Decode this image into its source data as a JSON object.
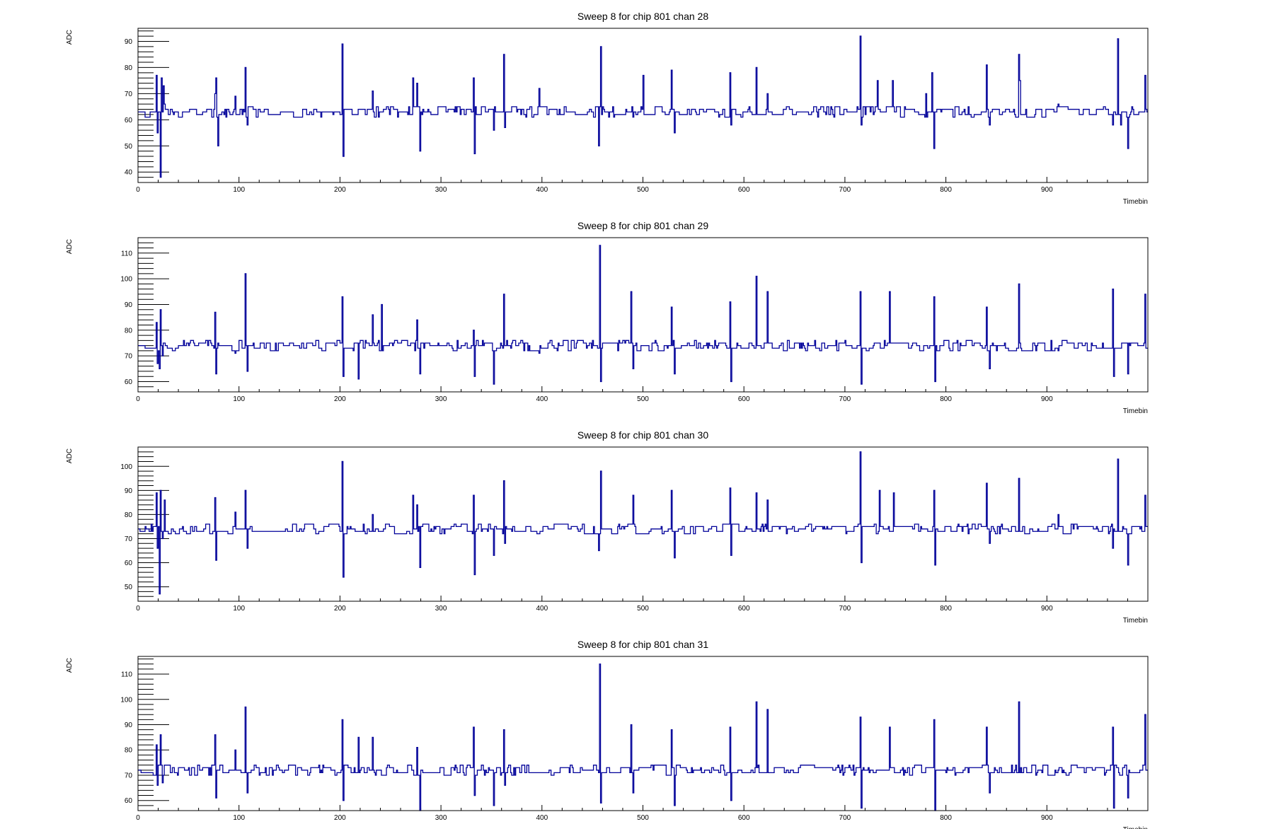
{
  "colors": {
    "trace": "#000099",
    "axis": "#000000",
    "background": "#ffffff"
  },
  "chart_data": [
    {
      "type": "line",
      "title": "Sweep 8 for chip 801 chan 28",
      "xlabel": "Timebin",
      "ylabel": "ADC",
      "xlim": [
        0,
        1000
      ],
      "ylim": [
        36,
        95
      ],
      "xticks": [
        0,
        100,
        200,
        300,
        400,
        500,
        600,
        700,
        800,
        900
      ],
      "yticks": [
        40,
        50,
        60,
        70,
        80,
        90
      ],
      "baseline": 63,
      "noise": 2,
      "spikes": [
        [
          18,
          77
        ],
        [
          19,
          55
        ],
        [
          22,
          38
        ],
        [
          23,
          76
        ],
        [
          25,
          73
        ],
        [
          26,
          66
        ],
        [
          76,
          70
        ],
        [
          77,
          76
        ],
        [
          79,
          50
        ],
        [
          96,
          69
        ],
        [
          106,
          80
        ],
        [
          108,
          58
        ],
        [
          202,
          89
        ],
        [
          203,
          46
        ],
        [
          232,
          71
        ],
        [
          272,
          76
        ],
        [
          276,
          74
        ],
        [
          279,
          48
        ],
        [
          332,
          76
        ],
        [
          333,
          47
        ],
        [
          352,
          56
        ],
        [
          362,
          85
        ],
        [
          363,
          57
        ],
        [
          397,
          72
        ],
        [
          456,
          50
        ],
        [
          458,
          88
        ],
        [
          500,
          77
        ],
        [
          528,
          79
        ],
        [
          531,
          55
        ],
        [
          586,
          78
        ],
        [
          587,
          58
        ],
        [
          612,
          80
        ],
        [
          623,
          70
        ],
        [
          715,
          92
        ],
        [
          716,
          58
        ],
        [
          732,
          75
        ],
        [
          747,
          75
        ],
        [
          780,
          70
        ],
        [
          786,
          78
        ],
        [
          788,
          49
        ],
        [
          840,
          81
        ],
        [
          843,
          58
        ],
        [
          872,
          85
        ],
        [
          873,
          75
        ],
        [
          911,
          66
        ],
        [
          965,
          58
        ],
        [
          970,
          91
        ],
        [
          973,
          58
        ],
        [
          980,
          49
        ],
        [
          997,
          77
        ]
      ]
    },
    {
      "type": "line",
      "title": "Sweep 8 for chip 801 chan 29",
      "xlabel": "Timebin",
      "ylabel": "ADC",
      "xlim": [
        0,
        1000
      ],
      "ylim": [
        56,
        116
      ],
      "xticks": [
        0,
        100,
        200,
        300,
        400,
        500,
        600,
        700,
        800,
        900
      ],
      "yticks": [
        60,
        70,
        80,
        90,
        100,
        110
      ],
      "baseline": 74,
      "noise": 2,
      "spikes": [
        [
          18,
          83
        ],
        [
          19,
          67
        ],
        [
          21,
          65
        ],
        [
          22,
          88
        ],
        [
          24,
          70
        ],
        [
          76,
          87
        ],
        [
          77,
          63
        ],
        [
          96,
          71
        ],
        [
          106,
          102
        ],
        [
          108,
          64
        ],
        [
          202,
          93
        ],
        [
          203,
          62
        ],
        [
          218,
          61
        ],
        [
          232,
          86
        ],
        [
          241,
          90
        ],
        [
          276,
          84
        ],
        [
          279,
          63
        ],
        [
          332,
          80
        ],
        [
          333,
          62
        ],
        [
          352,
          59
        ],
        [
          362,
          94
        ],
        [
          365,
          76
        ],
        [
          397,
          71
        ],
        [
          457,
          113
        ],
        [
          458,
          60
        ],
        [
          488,
          95
        ],
        [
          490,
          65
        ],
        [
          528,
          89
        ],
        [
          531,
          63
        ],
        [
          586,
          91
        ],
        [
          587,
          60
        ],
        [
          612,
          101
        ],
        [
          623,
          95
        ],
        [
          715,
          95
        ],
        [
          716,
          59
        ],
        [
          744,
          95
        ],
        [
          788,
          93
        ],
        [
          789,
          60
        ],
        [
          840,
          89
        ],
        [
          843,
          65
        ],
        [
          872,
          98
        ],
        [
          911,
          72
        ],
        [
          965,
          96
        ],
        [
          966,
          62
        ],
        [
          980,
          63
        ],
        [
          997,
          94
        ]
      ]
    },
    {
      "type": "line",
      "title": "Sweep 8 for chip 801 chan 30",
      "xlabel": "Timebin",
      "ylabel": "ADC",
      "xlim": [
        0,
        1000
      ],
      "ylim": [
        44,
        108
      ],
      "xticks": [
        0,
        100,
        200,
        300,
        400,
        500,
        600,
        700,
        800,
        900
      ],
      "yticks": [
        50,
        60,
        70,
        80,
        90,
        100
      ],
      "baseline": 74,
      "noise": 2,
      "spikes": [
        [
          18,
          89
        ],
        [
          19,
          66
        ],
        [
          21,
          47
        ],
        [
          22,
          90
        ],
        [
          24,
          70
        ],
        [
          26,
          86
        ],
        [
          76,
          87
        ],
        [
          77,
          61
        ],
        [
          96,
          81
        ],
        [
          106,
          90
        ],
        [
          108,
          66
        ],
        [
          202,
          102
        ],
        [
          203,
          54
        ],
        [
          232,
          80
        ],
        [
          272,
          88
        ],
        [
          276,
          84
        ],
        [
          279,
          58
        ],
        [
          332,
          88
        ],
        [
          333,
          55
        ],
        [
          352,
          63
        ],
        [
          362,
          94
        ],
        [
          363,
          68
        ],
        [
          456,
          65
        ],
        [
          458,
          98
        ],
        [
          490,
          88
        ],
        [
          528,
          90
        ],
        [
          531,
          62
        ],
        [
          586,
          91
        ],
        [
          587,
          63
        ],
        [
          612,
          89
        ],
        [
          623,
          86
        ],
        [
          715,
          106
        ],
        [
          716,
          60
        ],
        [
          734,
          90
        ],
        [
          748,
          89
        ],
        [
          788,
          90
        ],
        [
          789,
          59
        ],
        [
          840,
          93
        ],
        [
          843,
          68
        ],
        [
          872,
          95
        ],
        [
          911,
          80
        ],
        [
          965,
          66
        ],
        [
          970,
          103
        ],
        [
          980,
          59
        ],
        [
          997,
          88
        ]
      ]
    },
    {
      "type": "line",
      "title": "Sweep 8 for chip 801 chan 31",
      "xlabel": "Timebin",
      "ylabel": "ADC",
      "xlim": [
        0,
        1000
      ],
      "ylim": [
        56,
        117
      ],
      "xticks": [
        0,
        100,
        200,
        300,
        400,
        500,
        600,
        700,
        800,
        900
      ],
      "yticks": [
        60,
        70,
        80,
        90,
        100,
        110
      ],
      "baseline": 72,
      "noise": 2,
      "spikes": [
        [
          18,
          82
        ],
        [
          19,
          66
        ],
        [
          22,
          86
        ],
        [
          24,
          67
        ],
        [
          76,
          86
        ],
        [
          77,
          61
        ],
        [
          96,
          80
        ],
        [
          106,
          97
        ],
        [
          108,
          63
        ],
        [
          202,
          92
        ],
        [
          203,
          60
        ],
        [
          218,
          85
        ],
        [
          232,
          85
        ],
        [
          276,
          81
        ],
        [
          279,
          56
        ],
        [
          332,
          89
        ],
        [
          333,
          62
        ],
        [
          352,
          58
        ],
        [
          362,
          88
        ],
        [
          363,
          66
        ],
        [
          457,
          114
        ],
        [
          458,
          59
        ],
        [
          488,
          90
        ],
        [
          490,
          63
        ],
        [
          528,
          88
        ],
        [
          531,
          58
        ],
        [
          586,
          89
        ],
        [
          587,
          60
        ],
        [
          612,
          99
        ],
        [
          623,
          96
        ],
        [
          715,
          93
        ],
        [
          716,
          57
        ],
        [
          744,
          89
        ],
        [
          788,
          92
        ],
        [
          789,
          56
        ],
        [
          840,
          89
        ],
        [
          843,
          63
        ],
        [
          872,
          99
        ],
        [
          911,
          72
        ],
        [
          965,
          89
        ],
        [
          966,
          57
        ],
        [
          980,
          61
        ],
        [
          997,
          94
        ]
      ]
    }
  ]
}
